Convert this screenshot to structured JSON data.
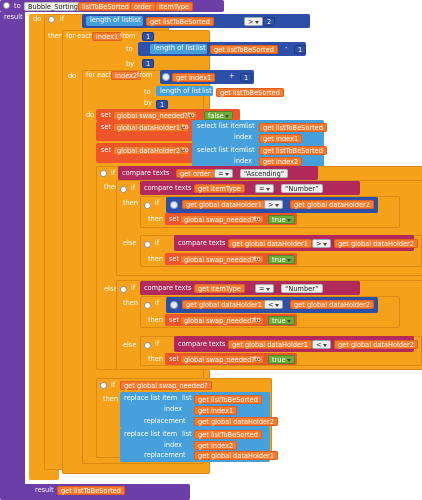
{
  "proc": {
    "to": "to",
    "name": "Bubble_Sorting",
    "params": [
      "listToBeSorted",
      "order",
      "itemType"
    ],
    "result": "result"
  },
  "kw": {
    "do": "do",
    "if": "if",
    "then": "then",
    "else": "else",
    "for_each": "for each",
    "from": "from",
    "to": "to",
    "by": "by",
    "set": "set",
    "get": "get",
    "index": "index",
    "list": "list",
    "replacement": "replacement",
    "length_of_list": "length of list",
    "select_list_item": "select list item",
    "replace_list_item": "replace list item",
    "compare_texts": "compare texts",
    "result": "result"
  },
  "vars": {
    "list": "listToBeSorted",
    "order": "order",
    "itemType": "itemType",
    "index1": "index1",
    "index2": "index2",
    "swap": "global swap_needed?",
    "dh1": "global dataHolder1",
    "dh2": "global dataHolder2"
  },
  "ops": {
    "gt": ">",
    "minus": "-",
    "plus": "+",
    "eq": "=",
    "lt": "<"
  },
  "nums": {
    "two": "2",
    "one": "1"
  },
  "literals": {
    "false": "false",
    "true": "true",
    "ascending": "Ascending",
    "number": "Number"
  },
  "colors": {
    "procedure": "#6c3ea8",
    "control": "#f5a11a",
    "variable": "#f0542a",
    "get": "#f77a2e",
    "list": "#46a0dc",
    "math": "#2d4fa8",
    "logic": "#6dab3a",
    "text": "#b22a5c"
  }
}
